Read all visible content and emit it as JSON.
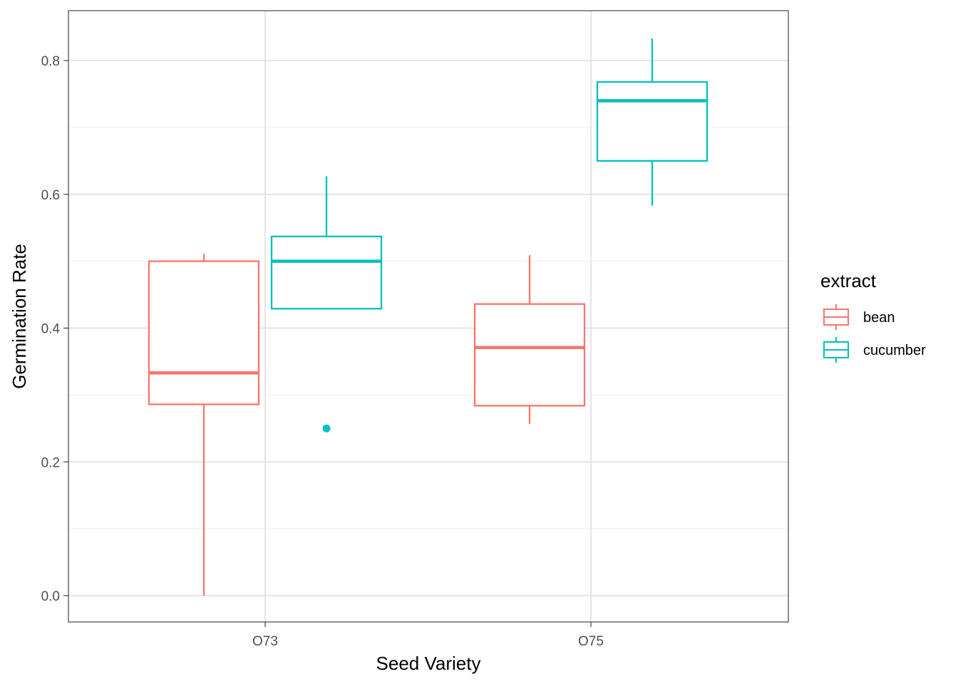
{
  "chart_data": {
    "type": "boxplot",
    "xlabel": "Seed Variety",
    "ylabel": "Germination Rate",
    "categories": [
      "O73",
      "O75"
    ],
    "ylim": [
      -0.035,
      0.875
    ],
    "y_ticks": [
      0.0,
      0.2,
      0.4,
      0.6,
      0.8
    ],
    "y_tick_labels": [
      "0.0",
      "0.2",
      "0.4",
      "0.6",
      "0.8"
    ],
    "y_minor_ticks": [
      0.1,
      0.3,
      0.5,
      0.7
    ],
    "grid": true,
    "legend": {
      "title": "extract",
      "position": "right",
      "entries": [
        {
          "name": "bean",
          "color": "#F8766D"
        },
        {
          "name": "cucumber",
          "color": "#00BFC4"
        }
      ]
    },
    "series": [
      {
        "name": "bean",
        "color": "#F8766D",
        "boxes": [
          {
            "category": "O73",
            "min": 0.0,
            "q1": 0.286,
            "median": 0.333,
            "q3": 0.5,
            "max": 0.511,
            "outliers": []
          },
          {
            "category": "O75",
            "min": 0.257,
            "q1": 0.284,
            "median": 0.371,
            "q3": 0.436,
            "max": 0.509,
            "outliers": []
          }
        ]
      },
      {
        "name": "cucumber",
        "color": "#00BFC4",
        "boxes": [
          {
            "category": "O73",
            "min": 0.429,
            "q1": 0.429,
            "median": 0.5,
            "q3": 0.537,
            "max": 0.627,
            "outliers": [
              0.25
            ]
          },
          {
            "category": "O75",
            "min": 0.583,
            "q1": 0.65,
            "median": 0.74,
            "q3": 0.768,
            "max": 0.833,
            "outliers": []
          }
        ]
      }
    ]
  }
}
